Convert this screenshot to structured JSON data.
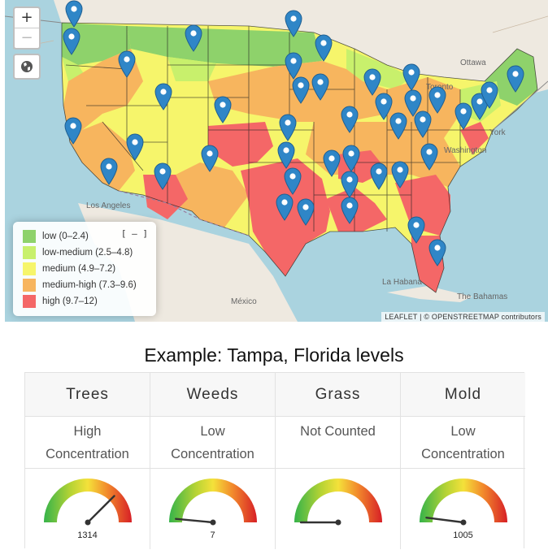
{
  "map": {
    "zoom_in_label": "+",
    "zoom_out_label": "−",
    "legend_collapse_label": "[ – ]",
    "legend": [
      {
        "label": "low (0–2.4)",
        "color": "#8ed26b"
      },
      {
        "label": "low-medium (2.5–4.8)",
        "color": "#c8f06c"
      },
      {
        "label": "medium (4.9–7.2)",
        "color": "#f6f56b"
      },
      {
        "label": "medium-high (7.3–9.6)",
        "color": "#f7b55e"
      },
      {
        "label": "high (9.7–12)",
        "color": "#f46767"
      }
    ],
    "pin_color": "#2f86c7",
    "places": {
      "ottawa": "Ottawa",
      "toronto": "Toronto",
      "new_york": "York",
      "washington": "Washington",
      "los_angeles": "Los Angeles",
      "mexico": "México",
      "la_habana": "La Habana",
      "bahamas": "The Bahamas"
    },
    "attribution": "LEAFLET | © OPENSTREETMAP contributors"
  },
  "caption": "Example: Tampa, Florida levels",
  "table": {
    "columns": [
      {
        "name": "Trees",
        "level_line1": "High",
        "level_line2": "Concentration",
        "value": "1314",
        "needle_fraction": 0.75
      },
      {
        "name": "Weeds",
        "level_line1": "Low",
        "level_line2": "Concentration",
        "value": "7",
        "needle_fraction": 0.03
      },
      {
        "name": "Grass",
        "level_line1": "Not Counted",
        "level_line2": "",
        "value": "",
        "needle_fraction": 0.0
      },
      {
        "name": "Mold",
        "level_line1": "Low",
        "level_line2": "Concentration",
        "value": "1005",
        "needle_fraction": 0.04
      }
    ]
  }
}
